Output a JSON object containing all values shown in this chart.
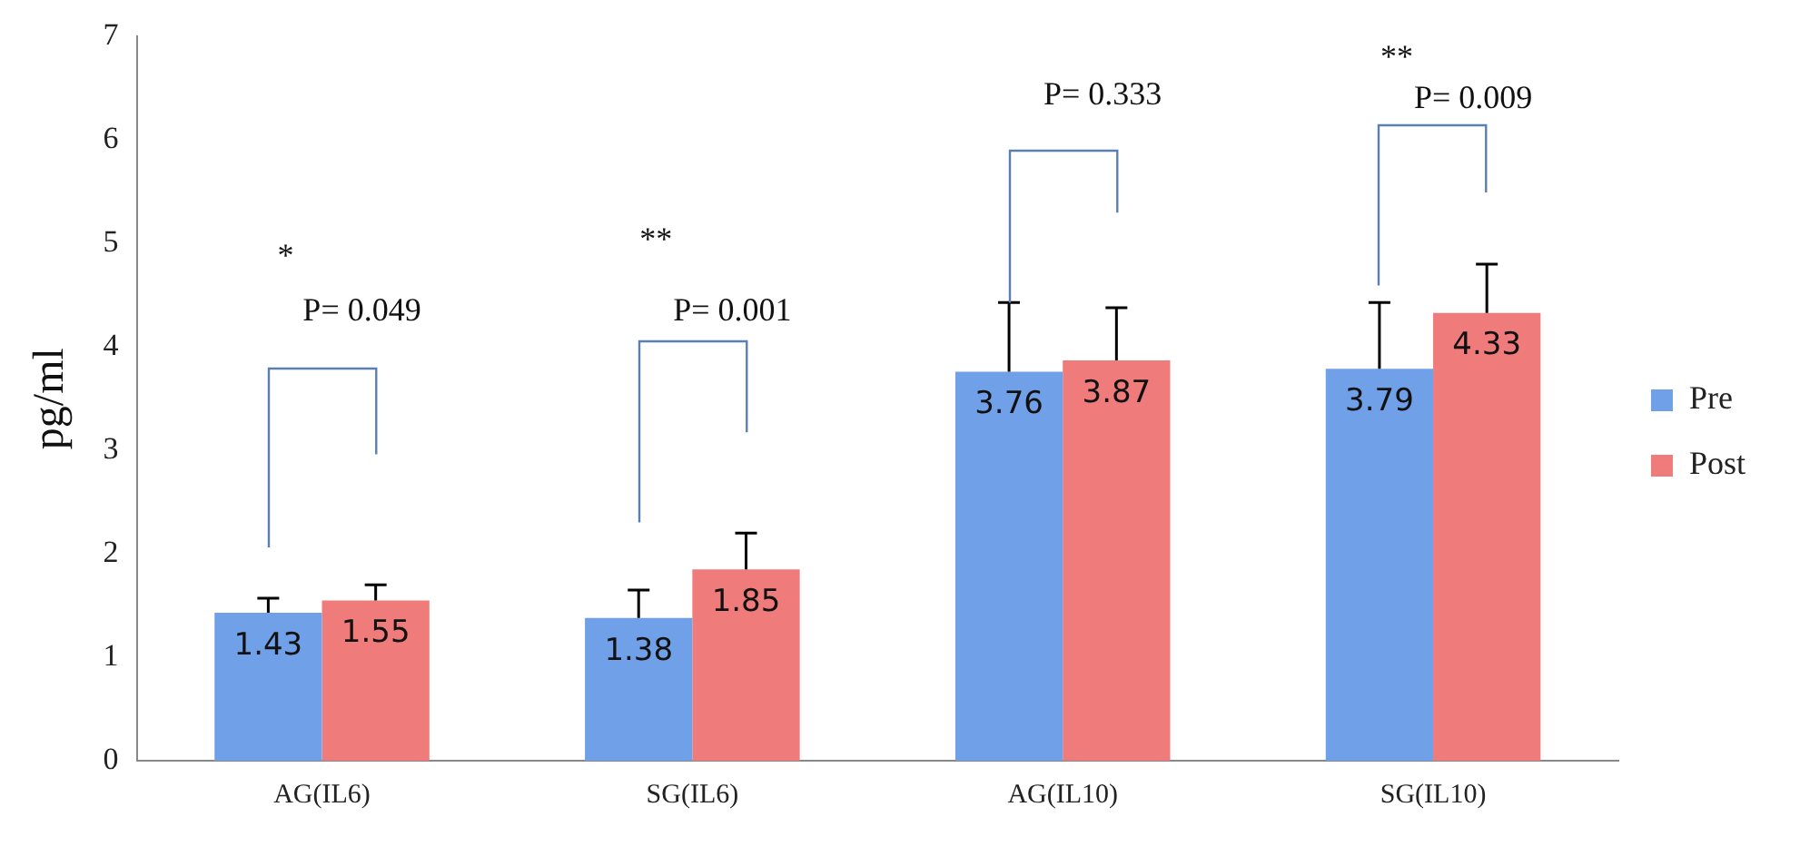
{
  "chart_data": {
    "type": "bar",
    "ylabel": "pg/ml",
    "categories": [
      "AG(IL6)",
      "SG(IL6)",
      "AG(IL10)",
      "SG(IL10)"
    ],
    "series": [
      {
        "name": "Pre",
        "color": "#6fa0e8",
        "values": [
          1.43,
          1.38,
          3.76,
          3.79
        ],
        "errors": [
          [
            1.43,
            1.57
          ],
          [
            1.38,
            1.65
          ],
          [
            3.76,
            4.43
          ],
          [
            3.79,
            4.43
          ]
        ]
      },
      {
        "name": "Post",
        "color": "#ef7b7b",
        "values": [
          1.55,
          1.85,
          3.87,
          4.33
        ],
        "errors": [
          [
            1.55,
            1.7
          ],
          [
            1.85,
            2.2
          ],
          [
            3.87,
            4.38
          ],
          [
            4.33,
            4.8
          ]
        ]
      }
    ],
    "ylim": [
      0,
      7
    ],
    "yticks": [
      0,
      1,
      2,
      3,
      4,
      5,
      6,
      7
    ],
    "grid": false,
    "legend": "right",
    "data_labels": true,
    "annotations": [
      "*",
      "P= 0.049",
      "**",
      "P= 0.001",
      "P= 0.333",
      "**",
      "P= 0.009"
    ]
  }
}
